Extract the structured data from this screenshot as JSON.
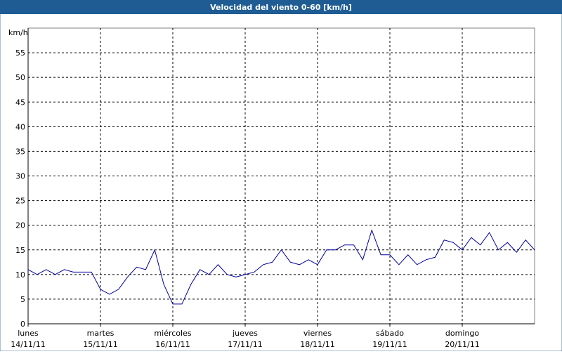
{
  "chart_data": {
    "type": "line",
    "title": "Velocidad del viento 0-60 [km/h]",
    "y_label": "km/h",
    "x": [
      0,
      3,
      6,
      9,
      12,
      15,
      18,
      21,
      24,
      27,
      30,
      33,
      36,
      39,
      42,
      45,
      48,
      51,
      54,
      57,
      60,
      63,
      66,
      69,
      72,
      75,
      78,
      81,
      84,
      87,
      90,
      93,
      96,
      99,
      102,
      105,
      108,
      111,
      114,
      117,
      120,
      123,
      126,
      129,
      132,
      135,
      138,
      141,
      144,
      147,
      150,
      153,
      156,
      159,
      162,
      165,
      168
    ],
    "series": [
      {
        "name": "Velocidad del viento",
        "color": "#0000a0",
        "values": [
          11,
          10,
          11,
          10,
          11,
          10.5,
          10.5,
          10.5,
          7,
          6,
          7,
          9.5,
          11.5,
          11,
          15,
          8,
          4,
          4,
          8,
          11,
          10,
          12,
          10,
          9.5,
          10,
          10.5,
          12,
          12.5,
          15,
          12.5,
          12,
          13,
          12,
          15,
          15,
          16,
          16,
          13,
          19,
          14,
          14,
          12,
          14,
          12,
          13,
          13.5,
          17,
          16.5,
          15,
          17.5,
          16,
          18.5,
          15,
          16.5,
          14.5,
          17,
          15
        ]
      }
    ],
    "xlim": [
      0,
      168
    ],
    "xticks": [
      {
        "value": 0,
        "label": "lunes"
      },
      {
        "value": 24,
        "label": "martes"
      },
      {
        "value": 48,
        "label": "miércoles"
      },
      {
        "value": 72,
        "label": "jueves"
      },
      {
        "value": 96,
        "label": "viernes"
      },
      {
        "value": 120,
        "label": "sábado"
      },
      {
        "value": 144,
        "label": "domingo"
      }
    ],
    "xtick_dates": [
      "14/11/11",
      "15/11/11",
      "16/11/11",
      "17/11/11",
      "18/11/11",
      "19/11/11",
      "20/11/11"
    ],
    "ylim": [
      0,
      60
    ],
    "yticks": [
      0,
      5,
      10,
      15,
      20,
      25,
      30,
      35,
      40,
      45,
      50,
      55
    ],
    "grid": true
  }
}
